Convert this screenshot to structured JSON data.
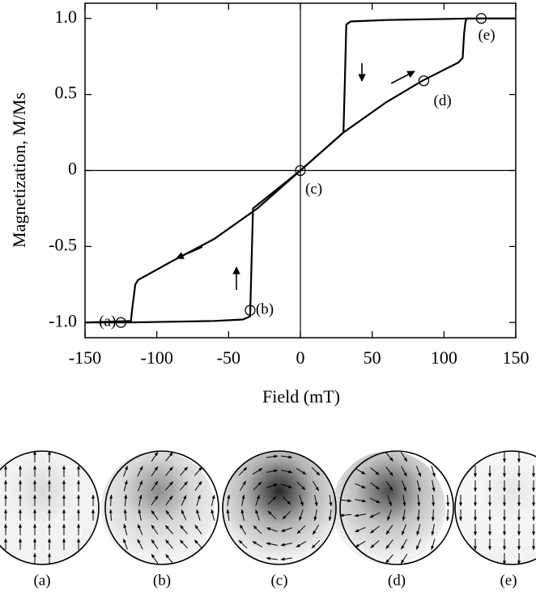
{
  "chart_data": {
    "type": "line",
    "xlabel": "Field (mT)",
    "ylabel": "Magnetization, M/Ms",
    "xlim": [
      -150,
      150
    ],
    "ylim": [
      -1.1,
      1.1
    ],
    "xticks": [
      -150,
      -100,
      -50,
      0,
      50,
      100,
      150
    ],
    "yticks": [
      {
        "value": -1,
        "label": "-1.0"
      },
      -0.5,
      0,
      0.5,
      {
        "value": 1,
        "label": "1.0"
      }
    ],
    "color": "#000000",
    "series": [
      {
        "x": [
          150,
          120,
          60,
          35,
          32,
          31,
          30,
          0,
          -30,
          -60,
          -90,
          -113,
          -115,
          -117,
          -118,
          -150
        ],
        "values": [
          1.0,
          1.0,
          0.99,
          0.98,
          0.96,
          0.6,
          0.25,
          0,
          -0.25,
          -0.45,
          -0.6,
          -0.72,
          -0.75,
          -0.9,
          -0.99,
          -1.0
        ]
      },
      {
        "x": [
          -150,
          -120,
          -60,
          -40,
          -35,
          -34,
          -33,
          0,
          30,
          60,
          85,
          110,
          113,
          114,
          115,
          116,
          150
        ],
        "values": [
          -1.0,
          -1.0,
          -0.99,
          -0.98,
          -0.96,
          -0.6,
          -0.25,
          0,
          0.25,
          0.45,
          0.59,
          0.71,
          0.74,
          0.9,
          0.98,
          1.0,
          1.0
        ]
      }
    ],
    "markers": {
      "x": [
        -125,
        -35,
        0,
        86,
        126
      ],
      "values": [
        -1.0,
        -0.92,
        0,
        0.59,
        1.0
      ],
      "labels": [
        "(a)",
        "(b)",
        "(c)",
        "(d)",
        "(e)"
      ]
    },
    "panels": [
      "(a)",
      "(b)",
      "(c)",
      "(d)",
      "(e)"
    ]
  }
}
